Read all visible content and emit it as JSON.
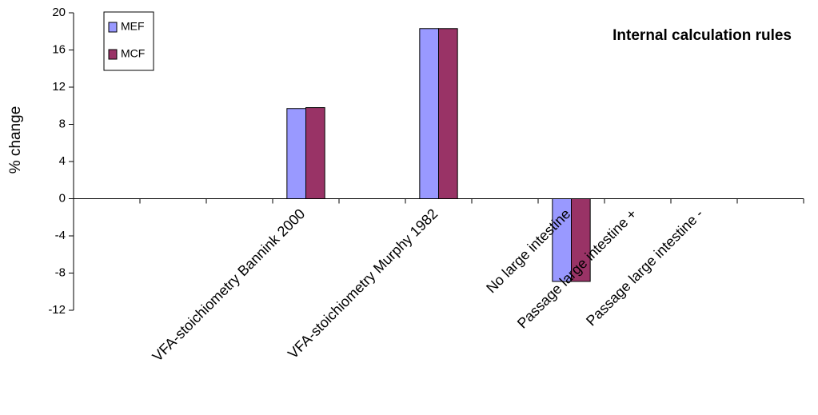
{
  "chart_data": {
    "type": "bar",
    "title": "Internal calculation rules",
    "y_label": "% change",
    "categories": [
      null,
      null,
      null,
      "VFA-stoichiometry Bannink 2000",
      null,
      "VFA-stoichiometry Murphy 1982",
      null,
      "No large intestine",
      "Passage large intestine +",
      "Passage large intestine -",
      null
    ],
    "series": [
      {
        "name": "MEF",
        "color": "#9999ff",
        "values": [
          null,
          null,
          null,
          9.7,
          null,
          18.3,
          null,
          -8.9,
          0,
          0,
          null
        ]
      },
      {
        "name": "MCF",
        "color": "#993366",
        "values": [
          null,
          null,
          null,
          9.8,
          null,
          18.3,
          null,
          -8.9,
          0,
          0,
          null
        ]
      }
    ],
    "ylim": [
      -12,
      20
    ],
    "yticks": [
      -12,
      -8,
      -4,
      0,
      4,
      8,
      12,
      16,
      20
    ],
    "legend": "upper left"
  }
}
